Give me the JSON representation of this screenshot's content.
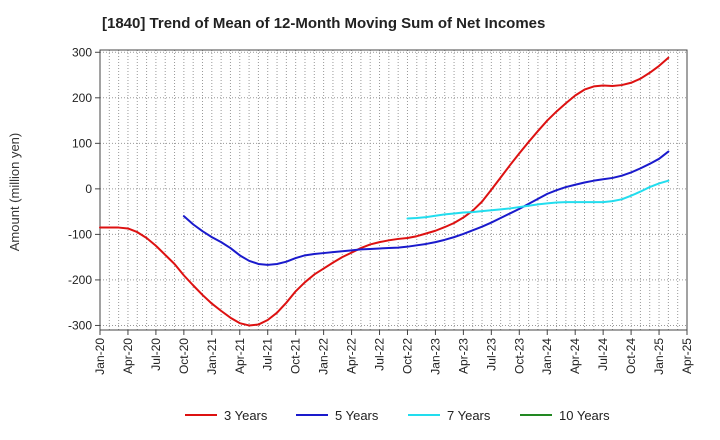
{
  "chart_data": {
    "type": "line",
    "title": "[1840]  Trend of Mean of 12-Month Moving Sum of Net Incomes",
    "xlabel": "",
    "ylabel": "Amount (million yen)",
    "ylim": [
      -310,
      305
    ],
    "yticks": [
      300,
      200,
      100,
      0,
      -100,
      -200,
      -300
    ],
    "grid": true,
    "legend_position": "bottom",
    "x_tick_labels": [
      "Jan-20",
      "Apr-20",
      "Jul-20",
      "Oct-20",
      "Jan-21",
      "Apr-21",
      "Jul-21",
      "Oct-21",
      "Jan-22",
      "Apr-22",
      "Jul-22",
      "Oct-22",
      "Jan-23",
      "Apr-23",
      "Jul-23",
      "Oct-23",
      "Jan-24",
      "Apr-24",
      "Jul-24",
      "Oct-24",
      "Jan-25",
      "Apr-25"
    ],
    "series": [
      {
        "name": "3 Years",
        "color": "#dd1111",
        "points": [
          [
            "Jan-20",
            -85
          ],
          [
            "Feb-20",
            -85
          ],
          [
            "Mar-20",
            -85
          ],
          [
            "Apr-20",
            -87
          ],
          [
            "May-20",
            -95
          ],
          [
            "Jun-20",
            -108
          ],
          [
            "Jul-20",
            -125
          ],
          [
            "Aug-20",
            -145
          ],
          [
            "Sep-20",
            -165
          ],
          [
            "Oct-20",
            -190
          ],
          [
            "Nov-20",
            -212
          ],
          [
            "Dec-20",
            -233
          ],
          [
            "Jan-21",
            -252
          ],
          [
            "Feb-21",
            -268
          ],
          [
            "Mar-21",
            -283
          ],
          [
            "Apr-21",
            -295
          ],
          [
            "May-21",
            -300
          ],
          [
            "Jun-21",
            -298
          ],
          [
            "Jul-21",
            -288
          ],
          [
            "Aug-21",
            -272
          ],
          [
            "Sep-21",
            -250
          ],
          [
            "Oct-21",
            -225
          ],
          [
            "Nov-21",
            -205
          ],
          [
            "Dec-21",
            -188
          ],
          [
            "Jan-22",
            -175
          ],
          [
            "Feb-22",
            -162
          ],
          [
            "Mar-22",
            -150
          ],
          [
            "Apr-22",
            -140
          ],
          [
            "May-22",
            -130
          ],
          [
            "Jun-22",
            -122
          ],
          [
            "Jul-22",
            -117
          ],
          [
            "Aug-22",
            -113
          ],
          [
            "Sep-22",
            -110
          ],
          [
            "Oct-22",
            -108
          ],
          [
            "Nov-22",
            -104
          ],
          [
            "Dec-22",
            -98
          ],
          [
            "Jan-23",
            -92
          ],
          [
            "Feb-23",
            -84
          ],
          [
            "Mar-23",
            -75
          ],
          [
            "Apr-23",
            -63
          ],
          [
            "May-23",
            -48
          ],
          [
            "Jun-23",
            -28
          ],
          [
            "Jul-23",
            -2
          ],
          [
            "Aug-23",
            25
          ],
          [
            "Sep-23",
            52
          ],
          [
            "Oct-23",
            78
          ],
          [
            "Nov-23",
            103
          ],
          [
            "Dec-23",
            127
          ],
          [
            "Jan-24",
            150
          ],
          [
            "Feb-24",
            170
          ],
          [
            "Mar-24",
            188
          ],
          [
            "Apr-24",
            205
          ],
          [
            "May-24",
            218
          ],
          [
            "Jun-24",
            225
          ],
          [
            "Jul-24",
            227
          ],
          [
            "Aug-24",
            226
          ],
          [
            "Sep-24",
            228
          ],
          [
            "Oct-24",
            233
          ],
          [
            "Nov-24",
            242
          ],
          [
            "Dec-24",
            255
          ],
          [
            "Jan-25",
            270
          ],
          [
            "Feb-25",
            288
          ]
        ]
      },
      {
        "name": "5 Years",
        "color": "#1a1acc",
        "points": [
          [
            "Oct-20",
            -60
          ],
          [
            "Nov-20",
            -78
          ],
          [
            "Dec-20",
            -93
          ],
          [
            "Jan-21",
            -106
          ],
          [
            "Feb-21",
            -117
          ],
          [
            "Mar-21",
            -130
          ],
          [
            "Apr-21",
            -146
          ],
          [
            "May-21",
            -158
          ],
          [
            "Jun-21",
            -165
          ],
          [
            "Jul-21",
            -167
          ],
          [
            "Aug-21",
            -165
          ],
          [
            "Sep-21",
            -160
          ],
          [
            "Oct-21",
            -152
          ],
          [
            "Nov-21",
            -146
          ],
          [
            "Dec-21",
            -143
          ],
          [
            "Jan-22",
            -141
          ],
          [
            "Feb-22",
            -139
          ],
          [
            "Mar-22",
            -137
          ],
          [
            "Apr-22",
            -135
          ],
          [
            "May-22",
            -133
          ],
          [
            "Jun-22",
            -132
          ],
          [
            "Jul-22",
            -131
          ],
          [
            "Aug-22",
            -130
          ],
          [
            "Sep-22",
            -129
          ],
          [
            "Oct-22",
            -127
          ],
          [
            "Nov-22",
            -124
          ],
          [
            "Dec-22",
            -121
          ],
          [
            "Jan-23",
            -117
          ],
          [
            "Feb-23",
            -112
          ],
          [
            "Mar-23",
            -106
          ],
          [
            "Apr-23",
            -99
          ],
          [
            "May-23",
            -91
          ],
          [
            "Jun-23",
            -83
          ],
          [
            "Jul-23",
            -74
          ],
          [
            "Aug-23",
            -64
          ],
          [
            "Sep-23",
            -54
          ],
          [
            "Oct-23",
            -44
          ],
          [
            "Nov-23",
            -33
          ],
          [
            "Dec-23",
            -22
          ],
          [
            "Jan-24",
            -11
          ],
          [
            "Feb-24",
            -3
          ],
          [
            "Mar-24",
            4
          ],
          [
            "Apr-24",
            9
          ],
          [
            "May-24",
            14
          ],
          [
            "Jun-24",
            18
          ],
          [
            "Jul-24",
            21
          ],
          [
            "Aug-24",
            24
          ],
          [
            "Sep-24",
            29
          ],
          [
            "Oct-24",
            36
          ],
          [
            "Nov-24",
            45
          ],
          [
            "Dec-24",
            55
          ],
          [
            "Jan-25",
            66
          ],
          [
            "Feb-25",
            82
          ]
        ]
      },
      {
        "name": "7 Years",
        "color": "#22ddee",
        "points": [
          [
            "Oct-22",
            -65
          ],
          [
            "Nov-22",
            -64
          ],
          [
            "Dec-22",
            -62
          ],
          [
            "Jan-23",
            -59
          ],
          [
            "Feb-23",
            -56
          ],
          [
            "Mar-23",
            -54
          ],
          [
            "Apr-23",
            -52
          ],
          [
            "May-23",
            -51
          ],
          [
            "Jun-23",
            -49
          ],
          [
            "Jul-23",
            -47
          ],
          [
            "Aug-23",
            -45
          ],
          [
            "Sep-23",
            -43
          ],
          [
            "Oct-23",
            -40
          ],
          [
            "Nov-23",
            -37
          ],
          [
            "Dec-23",
            -34
          ],
          [
            "Jan-24",
            -32
          ],
          [
            "Feb-24",
            -30
          ],
          [
            "Mar-24",
            -29
          ],
          [
            "Apr-24",
            -29
          ],
          [
            "May-24",
            -29
          ],
          [
            "Jun-24",
            -29
          ],
          [
            "Jul-24",
            -29
          ],
          [
            "Aug-24",
            -27
          ],
          [
            "Sep-24",
            -23
          ],
          [
            "Oct-24",
            -15
          ],
          [
            "Nov-24",
            -6
          ],
          [
            "Dec-24",
            4
          ],
          [
            "Jan-25",
            12
          ],
          [
            "Feb-25",
            18
          ]
        ]
      },
      {
        "name": "10 Years",
        "color": "#228822",
        "points": []
      }
    ]
  }
}
